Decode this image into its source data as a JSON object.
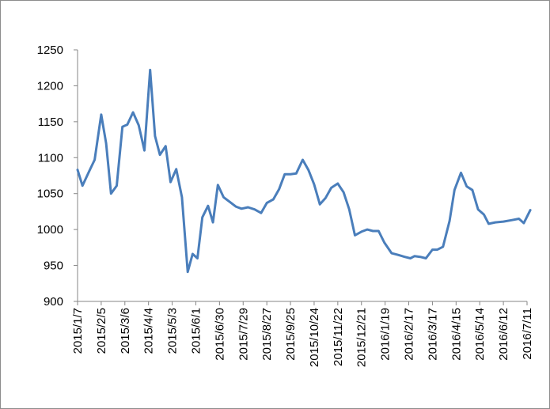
{
  "chart_data": {
    "type": "line",
    "title": "",
    "xlabel": "",
    "ylabel": "",
    "ylim": [
      900,
      1250
    ],
    "y_ticks": [
      900,
      950,
      1000,
      1050,
      1100,
      1150,
      1200,
      1250
    ],
    "grid": false,
    "legend": "none",
    "x_tick_labels": [
      "2015/1/7",
      "2015/2/5",
      "2015/3/6",
      "2015/4/4",
      "2015/5/3",
      "2015/6/1",
      "2015/6/30",
      "2015/7/29",
      "2015/8/27",
      "2015/9/25",
      "2015/10/24",
      "2015/11/22",
      "2015/12/21",
      "2016/1/19",
      "2016/2/17",
      "2016/3/17",
      "2016/4/15",
      "2016/5/14",
      "2016/6/12",
      "2016/7/11"
    ],
    "series": [
      {
        "color": "#4a7ebb",
        "points": [
          [
            "2015/1/7",
            1083
          ],
          [
            "2015/1/13",
            1061
          ],
          [
            "2015/1/22",
            1083
          ],
          [
            "2015/1/28",
            1097
          ],
          [
            "2015/2/5",
            1160
          ],
          [
            "2015/2/11",
            1120
          ],
          [
            "2015/2/17",
            1050
          ],
          [
            "2015/2/24",
            1061
          ],
          [
            "2015/3/3",
            1143
          ],
          [
            "2015/3/9",
            1146
          ],
          [
            "2015/3/16",
            1163
          ],
          [
            "2015/3/23",
            1145
          ],
          [
            "2015/3/30",
            1110
          ],
          [
            "2015/4/6",
            1222
          ],
          [
            "2015/4/12",
            1130
          ],
          [
            "2015/4/18",
            1104
          ],
          [
            "2015/4/25",
            1116
          ],
          [
            "2015/5/1",
            1066
          ],
          [
            "2015/5/8",
            1084
          ],
          [
            "2015/5/15",
            1045
          ],
          [
            "2015/5/22",
            941
          ],
          [
            "2015/5/28",
            966
          ],
          [
            "2015/6/3",
            960
          ],
          [
            "2015/6/9",
            1017
          ],
          [
            "2015/6/16",
            1033
          ],
          [
            "2015/6/22",
            1010
          ],
          [
            "2015/6/28",
            1062
          ],
          [
            "2015/7/5",
            1045
          ],
          [
            "2015/7/13",
            1038
          ],
          [
            "2015/7/20",
            1032
          ],
          [
            "2015/7/27",
            1029
          ],
          [
            "2015/8/4",
            1031
          ],
          [
            "2015/8/12",
            1028
          ],
          [
            "2015/8/20",
            1023
          ],
          [
            "2015/8/27",
            1037
          ],
          [
            "2015/9/4",
            1042
          ],
          [
            "2015/9/11",
            1056
          ],
          [
            "2015/9/18",
            1077
          ],
          [
            "2015/9/25",
            1077
          ],
          [
            "2015/10/2",
            1078
          ],
          [
            "2015/10/10",
            1097
          ],
          [
            "2015/10/17",
            1083
          ],
          [
            "2015/10/24",
            1063
          ],
          [
            "2015/10/31",
            1035
          ],
          [
            "2015/11/7",
            1044
          ],
          [
            "2015/11/14",
            1058
          ],
          [
            "2015/11/22",
            1064
          ],
          [
            "2015/11/29",
            1052
          ],
          [
            "2015/12/6",
            1028
          ],
          [
            "2015/12/13",
            992
          ],
          [
            "2015/12/21",
            997
          ],
          [
            "2015/12/28",
            1000
          ],
          [
            "2016/1/4",
            998
          ],
          [
            "2016/1/11",
            998
          ],
          [
            "2016/1/18",
            982
          ],
          [
            "2016/1/27",
            967
          ],
          [
            "2016/2/3",
            965
          ],
          [
            "2016/2/12",
            962
          ],
          [
            "2016/2/19",
            960
          ],
          [
            "2016/2/24",
            963
          ],
          [
            "2016/3/2",
            962
          ],
          [
            "2016/3/9",
            960
          ],
          [
            "2016/3/17",
            972
          ],
          [
            "2016/3/23",
            972
          ],
          [
            "2016/3/30",
            976
          ],
          [
            "2016/4/7",
            1012
          ],
          [
            "2016/4/13",
            1055
          ],
          [
            "2016/4/21",
            1079
          ],
          [
            "2016/4/28",
            1060
          ],
          [
            "2016/5/5",
            1055
          ],
          [
            "2016/5/12",
            1028
          ],
          [
            "2016/5/19",
            1021
          ],
          [
            "2016/5/25",
            1008
          ],
          [
            "2016/6/2",
            1010
          ],
          [
            "2016/6/12",
            1011
          ],
          [
            "2016/6/22",
            1013
          ],
          [
            "2016/7/1",
            1015
          ],
          [
            "2016/7/7",
            1009
          ],
          [
            "2016/7/15",
            1027
          ]
        ]
      }
    ]
  }
}
